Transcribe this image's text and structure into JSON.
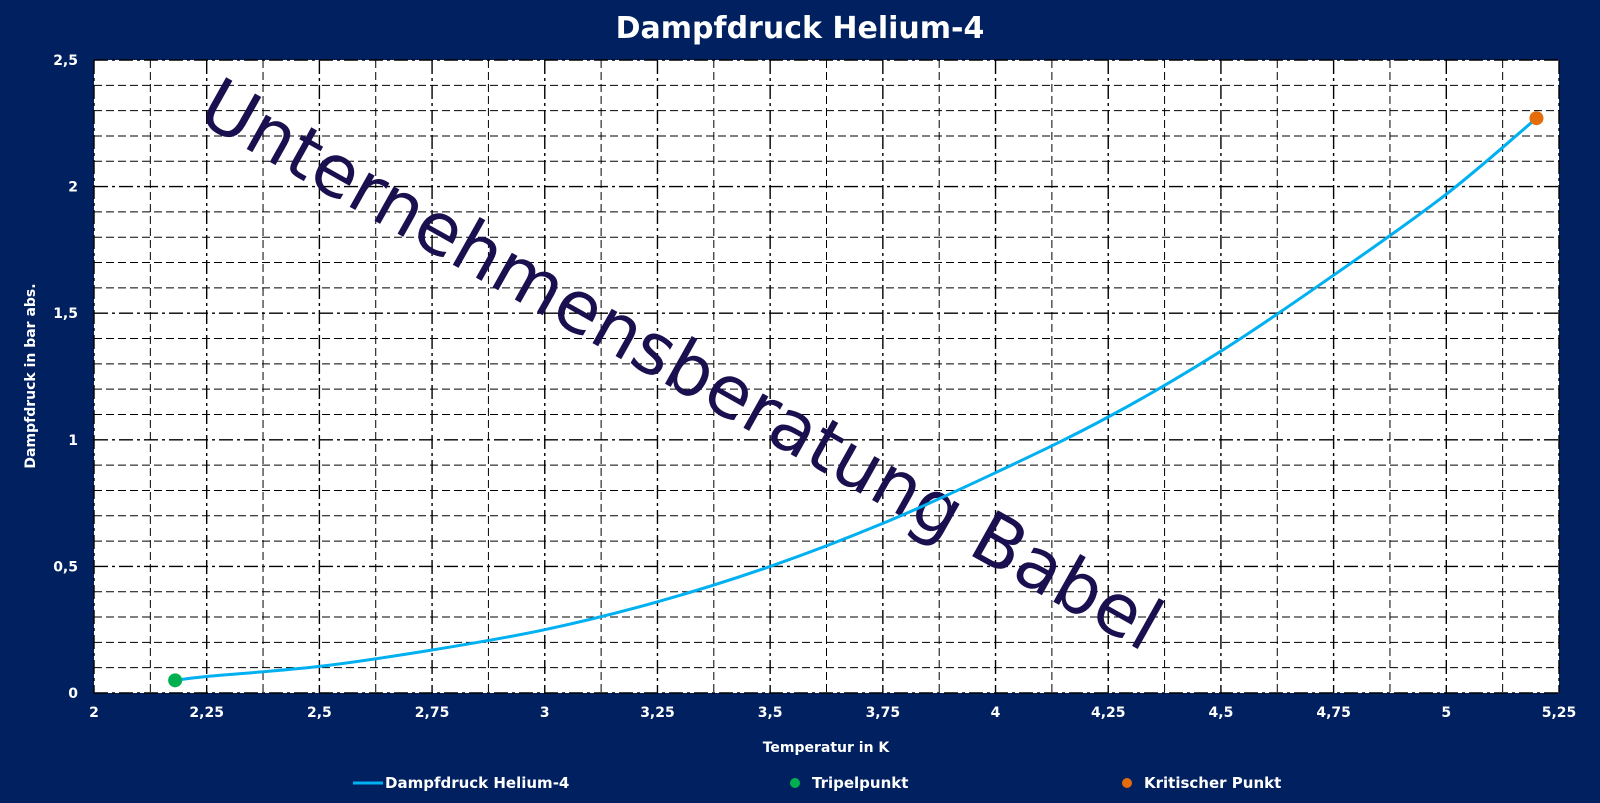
{
  "chart_data": {
    "type": "line",
    "title": "Dampfdruck Helium-4",
    "xlabel": "Temperatur in K",
    "ylabel": "Dampfdruck in bar abs.",
    "xlim": [
      2,
      5.25
    ],
    "ylim": [
      0,
      2.5
    ],
    "x_ticks": [
      "2",
      "2,25",
      "2,5",
      "2,75",
      "3",
      "3,25",
      "3,5",
      "3,75",
      "4",
      "4,25",
      "4,5",
      "4,75",
      "5",
      "5,25"
    ],
    "y_ticks": [
      "0",
      "0,5",
      "1",
      "1,5",
      "2",
      "2,5"
    ],
    "grid": true,
    "legend_position": "bottom",
    "series": [
      {
        "name": "Dampfdruck Helium-4",
        "color": "#00b0f0",
        "x": [
          2.18,
          2.25,
          2.5,
          2.75,
          3.0,
          3.25,
          3.5,
          3.75,
          4.0,
          4.25,
          4.5,
          4.75,
          5.0,
          5.2
        ],
        "y": [
          0.05,
          0.065,
          0.105,
          0.17,
          0.25,
          0.36,
          0.5,
          0.67,
          0.87,
          1.09,
          1.35,
          1.65,
          1.97,
          2.27
        ]
      },
      {
        "name": "Tripelpunkt",
        "color": "#00b050",
        "x": [
          2.18
        ],
        "y": [
          0.05
        ]
      },
      {
        "name": "Kritischer Punkt",
        "color": "#e46c0a",
        "x": [
          5.2
        ],
        "y": [
          2.27
        ]
      }
    ]
  },
  "watermark": "Unternehmensberatung Babel"
}
